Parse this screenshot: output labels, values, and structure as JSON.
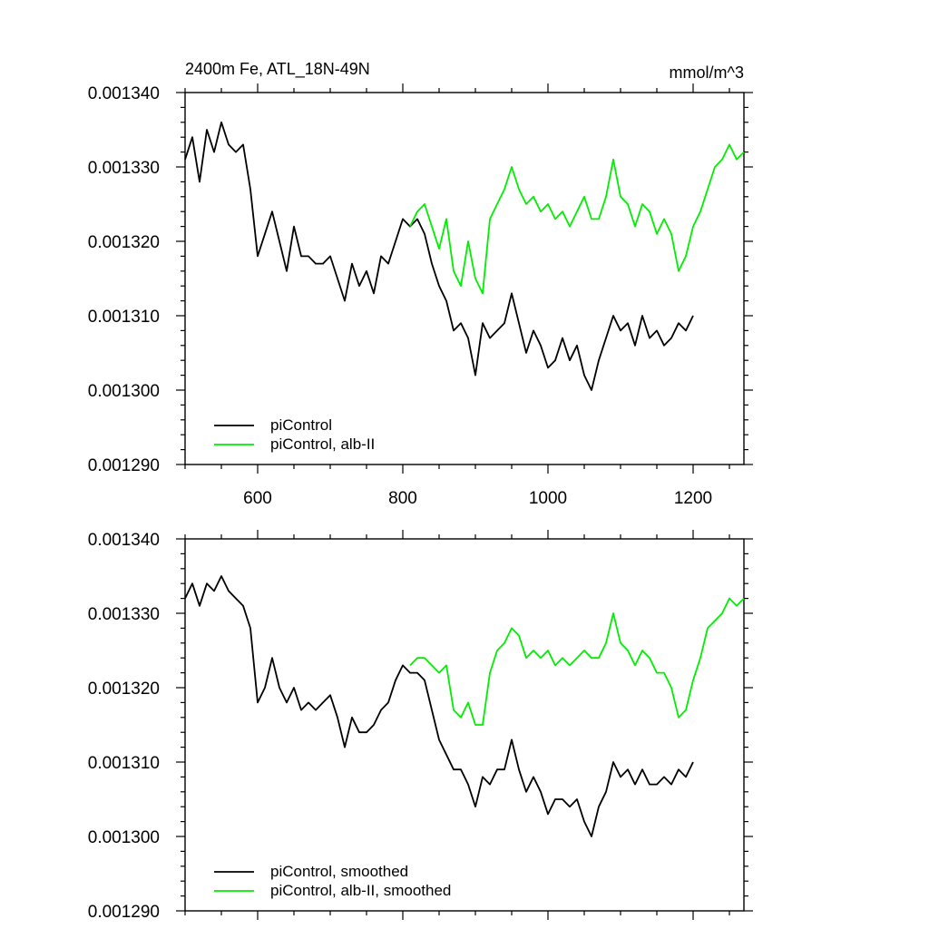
{
  "chart_data": [
    {
      "type": "line",
      "title": "2400m Fe, ATL_18N-49N",
      "units_label": "mmol/m^3",
      "xlabel": "",
      "ylabel": "",
      "xlim": [
        500,
        1270
      ],
      "ylim": [
        0.00129,
        0.00134
      ],
      "x_tick_labels": [
        "600",
        "800",
        "1000",
        "1200"
      ],
      "y_tick_labels": [
        "0.001340",
        "0.001330",
        "0.001320",
        "0.001310",
        "0.001300",
        "0.001290"
      ],
      "legend_position": "bottom-left",
      "series": [
        {
          "name": "piControl",
          "color": "#000000",
          "x": [
            500,
            510,
            520,
            530,
            540,
            550,
            560,
            570,
            580,
            590,
            600,
            610,
            620,
            630,
            640,
            650,
            660,
            670,
            680,
            690,
            700,
            710,
            720,
            730,
            740,
            750,
            760,
            770,
            780,
            790,
            800,
            810,
            820,
            830,
            840,
            850,
            860,
            870,
            880,
            890,
            900,
            910,
            920,
            930,
            940,
            950,
            960,
            970,
            980,
            990,
            1000,
            1010,
            1020,
            1030,
            1040,
            1050,
            1060,
            1070,
            1080,
            1090,
            1100,
            1110,
            1120,
            1130,
            1140,
            1150,
            1160,
            1170,
            1180,
            1190,
            1200
          ],
          "y": [
            0.001331,
            0.001334,
            0.001328,
            0.001335,
            0.001332,
            0.001336,
            0.001333,
            0.001332,
            0.001333,
            0.001327,
            0.001318,
            0.001321,
            0.001324,
            0.00132,
            0.001316,
            0.001322,
            0.001318,
            0.001318,
            0.001317,
            0.001317,
            0.001318,
            0.001315,
            0.001312,
            0.001317,
            0.001314,
            0.001316,
            0.001313,
            0.001318,
            0.001317,
            0.00132,
            0.001323,
            0.001322,
            0.001323,
            0.001321,
            0.001317,
            0.001314,
            0.001312,
            0.001308,
            0.001309,
            0.001307,
            0.001302,
            0.001309,
            0.001307,
            0.001308,
            0.001309,
            0.001313,
            0.001309,
            0.001305,
            0.001308,
            0.001306,
            0.001303,
            0.001304,
            0.001307,
            0.001304,
            0.001306,
            0.001302,
            0.0013,
            0.001304,
            0.001307,
            0.00131,
            0.001308,
            0.001309,
            0.001306,
            0.00131,
            0.001307,
            0.001308,
            0.001306,
            0.001307,
            0.001309,
            0.001308,
            0.00131
          ]
        },
        {
          "name": "piControl, alb-II",
          "color": "#00ee00",
          "x": [
            810,
            820,
            830,
            840,
            850,
            860,
            870,
            880,
            890,
            900,
            910,
            920,
            930,
            940,
            950,
            960,
            970,
            980,
            990,
            1000,
            1010,
            1020,
            1030,
            1040,
            1050,
            1060,
            1070,
            1080,
            1090,
            1100,
            1110,
            1120,
            1130,
            1140,
            1150,
            1160,
            1170,
            1180,
            1190,
            1200,
            1210,
            1220,
            1230,
            1240,
            1250,
            1260,
            1270
          ],
          "y": [
            0.001322,
            0.001324,
            0.001325,
            0.001322,
            0.001319,
            0.001323,
            0.001316,
            0.001314,
            0.00132,
            0.001315,
            0.001313,
            0.001323,
            0.001325,
            0.001327,
            0.00133,
            0.001327,
            0.001325,
            0.001326,
            0.001324,
            0.001325,
            0.001323,
            0.001324,
            0.001322,
            0.001324,
            0.001326,
            0.001323,
            0.001323,
            0.001326,
            0.001331,
            0.001326,
            0.001325,
            0.001322,
            0.001325,
            0.001324,
            0.001321,
            0.001323,
            0.001321,
            0.001316,
            0.001318,
            0.001322,
            0.001324,
            0.001327,
            0.00133,
            0.001331,
            0.001333,
            0.001331,
            0.001332
          ]
        }
      ]
    },
    {
      "type": "line",
      "title": "",
      "xlabel": "",
      "ylabel": "",
      "xlim": [
        500,
        1270
      ],
      "ylim": [
        0.00129,
        0.00134
      ],
      "x_tick_labels": [],
      "y_tick_labels": [
        "0.001340",
        "0.001330",
        "0.001320",
        "0.001310",
        "0.001300",
        "0.001290"
      ],
      "legend_position": "bottom-left",
      "series": [
        {
          "name": "piControl, smoothed",
          "color": "#000000",
          "x": [
            500,
            510,
            520,
            530,
            540,
            550,
            560,
            570,
            580,
            590,
            600,
            610,
            620,
            630,
            640,
            650,
            660,
            670,
            680,
            690,
            700,
            710,
            720,
            730,
            740,
            750,
            760,
            770,
            780,
            790,
            800,
            810,
            820,
            830,
            840,
            850,
            860,
            870,
            880,
            890,
            900,
            910,
            920,
            930,
            940,
            950,
            960,
            970,
            980,
            990,
            1000,
            1010,
            1020,
            1030,
            1040,
            1050,
            1060,
            1070,
            1080,
            1090,
            1100,
            1110,
            1120,
            1130,
            1140,
            1150,
            1160,
            1170,
            1180,
            1190,
            1200
          ],
          "y": [
            0.001332,
            0.001334,
            0.001331,
            0.001334,
            0.001333,
            0.001335,
            0.001333,
            0.001332,
            0.001331,
            0.001328,
            0.001318,
            0.00132,
            0.001324,
            0.00132,
            0.001318,
            0.00132,
            0.001317,
            0.001318,
            0.001317,
            0.001318,
            0.001319,
            0.001316,
            0.001312,
            0.001316,
            0.001314,
            0.001314,
            0.001315,
            0.001317,
            0.001318,
            0.001321,
            0.001323,
            0.001322,
            0.001322,
            0.001321,
            0.001317,
            0.001313,
            0.001311,
            0.001309,
            0.001309,
            0.001307,
            0.001304,
            0.001308,
            0.001307,
            0.001309,
            0.001309,
            0.001313,
            0.001309,
            0.001306,
            0.001308,
            0.001306,
            0.001303,
            0.001305,
            0.001305,
            0.001304,
            0.001305,
            0.001302,
            0.0013,
            0.001304,
            0.001306,
            0.00131,
            0.001308,
            0.001309,
            0.001307,
            0.001309,
            0.001307,
            0.001307,
            0.001308,
            0.001307,
            0.001309,
            0.001308,
            0.00131
          ]
        },
        {
          "name": "piControl, alb-II, smoothed",
          "color": "#00ee00",
          "x": [
            810,
            820,
            830,
            840,
            850,
            860,
            870,
            880,
            890,
            900,
            910,
            920,
            930,
            940,
            950,
            960,
            970,
            980,
            990,
            1000,
            1010,
            1020,
            1030,
            1040,
            1050,
            1060,
            1070,
            1080,
            1090,
            1100,
            1110,
            1120,
            1130,
            1140,
            1150,
            1160,
            1170,
            1180,
            1190,
            1200,
            1210,
            1220,
            1230,
            1240,
            1250,
            1260,
            1270
          ],
          "y": [
            0.001323,
            0.001324,
            0.001324,
            0.001323,
            0.001322,
            0.001323,
            0.001317,
            0.001316,
            0.001318,
            0.001315,
            0.001315,
            0.001322,
            0.001325,
            0.001326,
            0.001328,
            0.001327,
            0.001324,
            0.001325,
            0.001324,
            0.001325,
            0.001323,
            0.001324,
            0.001323,
            0.001324,
            0.001325,
            0.001324,
            0.001324,
            0.001326,
            0.00133,
            0.001326,
            0.001325,
            0.001323,
            0.001325,
            0.001324,
            0.001322,
            0.001322,
            0.00132,
            0.001316,
            0.001317,
            0.001321,
            0.001324,
            0.001328,
            0.001329,
            0.00133,
            0.001332,
            0.001331,
            0.001332
          ]
        }
      ]
    }
  ]
}
